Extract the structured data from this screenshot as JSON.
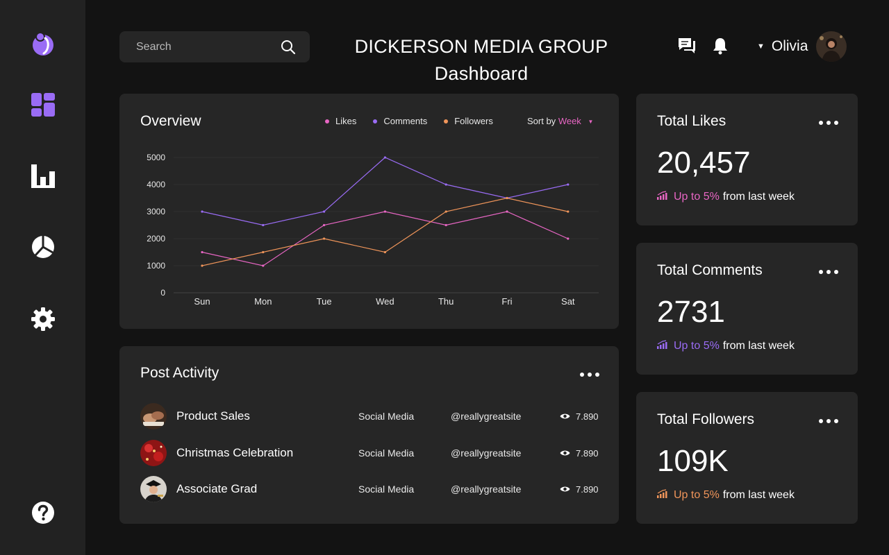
{
  "header": {
    "title_line1": "DICKERSON MEDIA GROUP",
    "title_line2": "Dashboard",
    "search_placeholder": "Search",
    "user_name": "Olivia"
  },
  "sidebar": {
    "icons": [
      "logo-icon",
      "dashboard-icon",
      "bar-chart-icon",
      "pie-chart-icon",
      "settings-icon",
      "help-icon"
    ]
  },
  "overview": {
    "title": "Overview",
    "legend": [
      "Likes",
      "Comments",
      "Followers"
    ],
    "sort_label": "Sort by",
    "sort_value": "Week"
  },
  "colors": {
    "likes": "#e866c4",
    "comments": "#9a6cf5",
    "followers": "#f0955a"
  },
  "chart_data": {
    "type": "line",
    "categories": [
      "Sun",
      "Mon",
      "Tue",
      "Wed",
      "Thu",
      "Fri",
      "Sat"
    ],
    "series": [
      {
        "name": "Likes",
        "values": [
          1500,
          1000,
          2500,
          3000,
          2500,
          3000,
          2000
        ]
      },
      {
        "name": "Comments",
        "values": [
          3000,
          2500,
          3000,
          5000,
          4000,
          3500,
          4000
        ]
      },
      {
        "name": "Followers",
        "values": [
          1000,
          1500,
          2000,
          1500,
          3000,
          3500,
          3000
        ]
      }
    ],
    "yticks": [
      "0",
      "1000",
      "2000",
      "3000",
      "4000",
      "5000"
    ],
    "ylim": [
      0,
      5000
    ],
    "grid": true,
    "legend_position": "top-right"
  },
  "activity": {
    "title": "Post Activity",
    "rows": [
      {
        "name": "Product Sales",
        "category": "Social Media",
        "handle": "@reallygreatsite",
        "views": "7.890"
      },
      {
        "name": "Christmas Celebration",
        "category": "Social Media",
        "handle": "@reallygreatsite",
        "views": "7.890"
      },
      {
        "name": "Associate Grad",
        "category": "Social Media",
        "handle": "@reallygreatsite",
        "views": "7.890"
      }
    ]
  },
  "stats": [
    {
      "label": "Total Likes",
      "value": "20,457",
      "trend_highlight": "Up to 5%",
      "trend_rest": "from last week",
      "color": "#e866c4"
    },
    {
      "label": "Total Comments",
      "value": "2731",
      "trend_highlight": "Up to 5%",
      "trend_rest": "from last week",
      "color": "#9a6cf5"
    },
    {
      "label": "Total Followers",
      "value": "109K",
      "trend_highlight": "Up to 5%",
      "trend_rest": "from last week",
      "color": "#f0955a"
    }
  ]
}
